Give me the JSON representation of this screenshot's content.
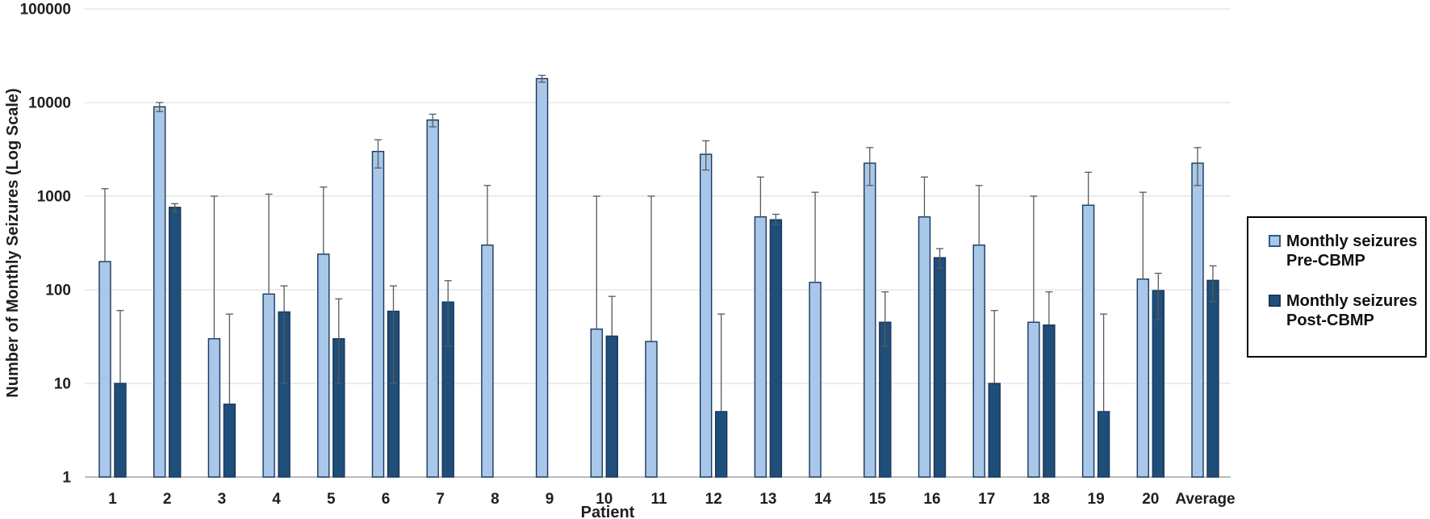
{
  "chart_data": {
    "type": "bar",
    "y_scale": "log",
    "title": "",
    "xlabel": "Patient",
    "ylabel": "Number of Monthly Seizures (Log Scale)",
    "ylim": [
      1,
      100000
    ],
    "yticks": [
      1,
      10,
      100,
      1000,
      10000,
      100000
    ],
    "grid": true,
    "legend_position": "right-middle",
    "categories": [
      "1",
      "2",
      "3",
      "4",
      "5",
      "6",
      "7",
      "8",
      "9",
      "10",
      "11",
      "12",
      "13",
      "14",
      "15",
      "16",
      "17",
      "18",
      "19",
      "20",
      "Average"
    ],
    "series": [
      {
        "name": "Monthly seizures Pre-CBMP",
        "color": "#A9C7E8",
        "border": "#17375E",
        "values": [
          200,
          9000,
          30,
          90,
          240,
          3000,
          6500,
          300,
          18000,
          38,
          28,
          2800,
          600,
          120,
          2250,
          600,
          300,
          45,
          800,
          130,
          2250
        ],
        "err_hi": [
          1200,
          10000,
          1000,
          1050,
          1250,
          4000,
          7500,
          1300,
          19500,
          1000,
          1000,
          3900,
          1600,
          1100,
          3300,
          1600,
          1300,
          1000,
          1800,
          1100,
          3300
        ],
        "err_lo": [
          null,
          8000,
          null,
          null,
          null,
          2000,
          5500,
          null,
          16500,
          null,
          null,
          1900,
          null,
          null,
          1300,
          null,
          null,
          null,
          null,
          null,
          1300
        ]
      },
      {
        "name": "Monthly seizures Post-CBMP",
        "color": "#1F4E79",
        "border": "#17375E",
        "values": [
          10,
          760,
          6,
          58,
          30,
          59,
          74,
          null,
          null,
          32,
          null,
          5,
          560,
          null,
          45,
          220,
          10,
          42,
          5,
          98,
          126
        ],
        "err_hi": [
          60,
          830,
          55,
          110,
          80,
          110,
          125,
          null,
          null,
          85,
          null,
          55,
          640,
          null,
          95,
          275,
          60,
          95,
          55,
          150,
          180
        ],
        "err_lo": [
          null,
          680,
          null,
          10,
          10,
          10,
          25,
          null,
          null,
          null,
          null,
          null,
          500,
          null,
          25,
          170,
          null,
          null,
          null,
          48,
          75
        ]
      }
    ],
    "colors": {
      "gridline": "#D9D9D9",
      "axis_line": "#A6A6A6",
      "error_bar": "#595959",
      "text": "#1f1f1f",
      "background": "#ffffff"
    }
  },
  "legend": {
    "items": [
      {
        "line1": "Monthly seizures",
        "line2": "Pre-CBMP"
      },
      {
        "line1": "Monthly seizures",
        "line2": "Post-CBMP"
      }
    ]
  }
}
